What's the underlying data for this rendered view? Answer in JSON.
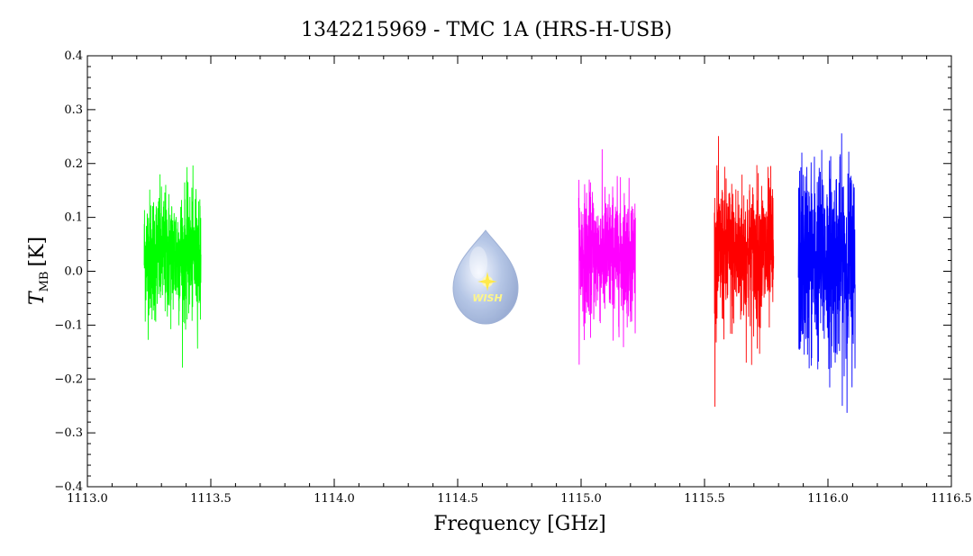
{
  "chart_data": {
    "type": "line",
    "title": "1342215969 - TMC 1A (HRS-H-USB)",
    "xlabel": "Frequency [GHz]",
    "ylabel_main": "T",
    "ylabel_sub": "MB",
    "ylabel_unit": "[K]",
    "xlim": [
      1113.0,
      1116.5
    ],
    "ylim": [
      -0.4,
      0.4
    ],
    "xticks": [
      1113.0,
      1113.5,
      1114.0,
      1114.5,
      1115.0,
      1115.5,
      1116.0,
      1116.5
    ],
    "xtick_labels": [
      "1113.0",
      "1113.5",
      "1114.0",
      "1114.5",
      "1115.0",
      "1115.5",
      "1116.0",
      "1116.5"
    ],
    "yticks": [
      -0.4,
      -0.3,
      -0.2,
      -0.1,
      0.0,
      0.1,
      0.2,
      0.3,
      0.4
    ],
    "ytick_labels": [
      "−0.4",
      "−0.3",
      "−0.2",
      "−0.1",
      "0.0",
      "0.1",
      "0.2",
      "0.3",
      "0.4"
    ],
    "grid": false,
    "series": [
      {
        "color": "#00ff00",
        "x_range": [
          1113.23,
          1113.46
        ],
        "center": 0.03,
        "noise_sigma": 0.06
      },
      {
        "color": "#ff00ff",
        "x_range": [
          1114.99,
          1115.22
        ],
        "center": 0.03,
        "noise_sigma": 0.06
      },
      {
        "color": "#ff0000",
        "x_range": [
          1115.54,
          1115.78
        ],
        "center": 0.03,
        "noise_sigma": 0.07
      },
      {
        "color": "#0000ff",
        "x_range": [
          1115.88,
          1116.11
        ],
        "center": 0.02,
        "noise_sigma": 0.09
      }
    ]
  },
  "logo": {
    "text": "WISH"
  }
}
